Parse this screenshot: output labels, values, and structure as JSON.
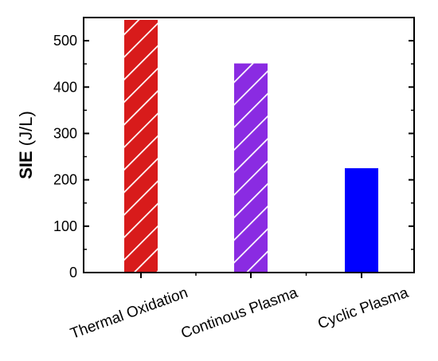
{
  "chart_data": {
    "type": "bar",
    "title": "",
    "xlabel": "",
    "ylabel_bold": "SIE",
    "ylabel_unit": " (J/L)",
    "ylim": [
      0,
      550
    ],
    "yticks": [
      0,
      100,
      200,
      300,
      400,
      500
    ],
    "ytick_labels": [
      "0",
      "100",
      "200",
      "300",
      "400",
      "500"
    ],
    "grid": false,
    "categories": [
      "Thermal Oxidation",
      "Continous Plasma",
      "Cyclic Plasma"
    ],
    "values": [
      545,
      451,
      225
    ],
    "colors": [
      "#d81b1b",
      "#8a2be2",
      "#0000ff"
    ],
    "hatched": [
      true,
      true,
      false
    ],
    "hatch_color": "#ffffff"
  }
}
